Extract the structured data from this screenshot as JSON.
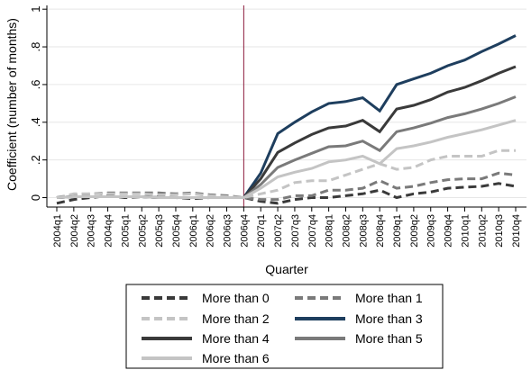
{
  "chart_data": {
    "type": "line",
    "xlabel": "Quarter",
    "ylabel": "Coefficient (number of months)",
    "ylim": [
      -0.05,
      1.02
    ],
    "yticks": [
      0,
      0.2,
      0.4,
      0.6,
      0.8,
      1
    ],
    "ytick_labels": [
      "0",
      ".2",
      ".4",
      ".6",
      ".8",
      "1"
    ],
    "grid": "horizontal",
    "vline_at": "2006q4",
    "legend_position": "bottom",
    "categories": [
      "2004q1",
      "2004q2",
      "2004q3",
      "2004q4",
      "2005q1",
      "2005q2",
      "2005q3",
      "2005q4",
      "2006q1",
      "2006q2",
      "2006q3",
      "2006q4",
      "2007q1",
      "2007q2",
      "2007q3",
      "2007q4",
      "2008q1",
      "2008q2",
      "2008q3",
      "2008q4",
      "2009q1",
      "2009q2",
      "2009q3",
      "2009q4",
      "2010q1",
      "2010q2",
      "2010q3",
      "2010q4"
    ],
    "series": [
      {
        "name": "More than 0",
        "color": "#3a3a3a",
        "dash": "dash",
        "width": 3,
        "values": [
          -0.03,
          -0.01,
          0.0,
          0.01,
          0.0,
          0.005,
          0.005,
          0.0,
          -0.005,
          0.0,
          0.0,
          0.0,
          -0.02,
          -0.03,
          -0.01,
          0.0,
          0.0,
          0.01,
          0.02,
          0.04,
          0.0,
          0.02,
          0.03,
          0.05,
          0.055,
          0.06,
          0.075,
          0.06
        ]
      },
      {
        "name": "More than 1",
        "color": "#7a7a7a",
        "dash": "dash",
        "width": 3,
        "values": [
          0.0,
          0.015,
          0.02,
          0.025,
          0.025,
          0.025,
          0.025,
          0.02,
          0.025,
          0.015,
          0.01,
          0.0,
          -0.01,
          -0.01,
          0.01,
          0.01,
          0.04,
          0.04,
          0.05,
          0.09,
          0.05,
          0.06,
          0.08,
          0.095,
          0.1,
          0.1,
          0.13,
          0.12
        ]
      },
      {
        "name": "More than 2",
        "color": "#c4c4c4",
        "dash": "dash",
        "width": 3,
        "values": [
          0.0,
          0.02,
          0.02,
          0.02,
          0.02,
          0.02,
          0.015,
          0.015,
          0.02,
          0.01,
          0.005,
          0.0,
          0.02,
          0.04,
          0.08,
          0.09,
          0.09,
          0.12,
          0.15,
          0.18,
          0.15,
          0.16,
          0.2,
          0.22,
          0.22,
          0.22,
          0.25,
          0.25
        ]
      },
      {
        "name": "More than 3",
        "color": "#1e3e5e",
        "dash": "solid",
        "width": 3,
        "values": [
          0.0,
          0.005,
          0.005,
          0.005,
          0.005,
          0.005,
          0.0,
          0.0,
          0.0,
          0.0,
          0.0,
          0.0,
          0.13,
          0.34,
          0.4,
          0.455,
          0.5,
          0.51,
          0.53,
          0.46,
          0.6,
          0.63,
          0.66,
          0.7,
          0.73,
          0.775,
          0.815,
          0.86
        ]
      },
      {
        "name": "More than 4",
        "color": "#3a3a3a",
        "dash": "solid",
        "width": 3,
        "values": [
          0.0,
          0.005,
          0.005,
          0.005,
          0.005,
          0.005,
          0.0,
          0.0,
          0.0,
          0.0,
          0.0,
          0.0,
          0.1,
          0.24,
          0.29,
          0.335,
          0.37,
          0.38,
          0.41,
          0.35,
          0.47,
          0.49,
          0.52,
          0.56,
          0.585,
          0.62,
          0.66,
          0.695
        ]
      },
      {
        "name": "More than 5",
        "color": "#7a7a7a",
        "dash": "solid",
        "width": 3,
        "values": [
          0.0,
          0.005,
          0.005,
          0.005,
          0.005,
          0.005,
          0.0,
          0.0,
          0.0,
          0.0,
          0.0,
          0.0,
          0.07,
          0.16,
          0.2,
          0.235,
          0.27,
          0.275,
          0.3,
          0.25,
          0.35,
          0.37,
          0.395,
          0.425,
          0.445,
          0.47,
          0.5,
          0.535
        ]
      },
      {
        "name": "More than 6",
        "color": "#c4c4c4",
        "dash": "solid",
        "width": 3,
        "values": [
          0.0,
          0.005,
          0.005,
          0.005,
          0.005,
          0.005,
          0.0,
          0.0,
          0.0,
          0.0,
          0.0,
          0.0,
          0.05,
          0.11,
          0.135,
          0.155,
          0.19,
          0.2,
          0.22,
          0.18,
          0.26,
          0.275,
          0.295,
          0.32,
          0.34,
          0.36,
          0.385,
          0.41
        ]
      }
    ]
  }
}
